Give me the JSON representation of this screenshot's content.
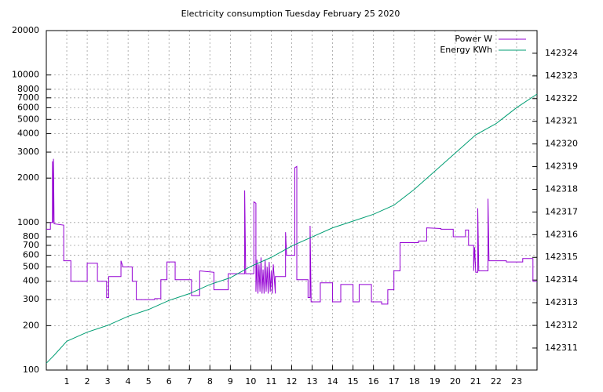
{
  "chart_data": {
    "type": "line",
    "title": "Electricity consumption Tuesday February 25 2020",
    "xlim": [
      0,
      24
    ],
    "xticks": [
      1,
      2,
      3,
      4,
      5,
      6,
      7,
      8,
      9,
      10,
      11,
      12,
      13,
      14,
      15,
      16,
      17,
      18,
      19,
      20,
      21,
      22,
      23
    ],
    "ylim": [
      100,
      20000
    ],
    "ylog": true,
    "yticks": [
      100,
      200,
      300,
      400,
      500,
      600,
      700,
      800,
      1000,
      2000,
      3000,
      4000,
      5000,
      6000,
      7000,
      8000,
      10000,
      20000
    ],
    "y2lim": [
      142310.03,
      142325
    ],
    "y2ticks": [
      142311,
      142312,
      142313,
      142314,
      142315,
      142316,
      142317,
      142318,
      142319,
      142320,
      142321,
      142322,
      142323,
      142324
    ],
    "grid": true,
    "legend": "top-right",
    "series": [
      {
        "name": "Power W",
        "color": "#9400d3",
        "x": [
          0,
          0.2,
          0.2,
          0.3,
          0.3,
          0.33,
          0.35,
          0.38,
          0.85,
          0.85,
          1.2,
          1.2,
          2.0,
          2.0,
          2.5,
          2.5,
          2.95,
          2.95,
          3.05,
          3.05,
          3.65,
          3.65,
          3.75,
          4.2,
          4.2,
          4.4,
          4.4,
          5.3,
          5.3,
          5.6,
          5.6,
          5.9,
          5.9,
          6.3,
          6.3,
          7.1,
          7.1,
          7.5,
          7.5,
          8.2,
          8.2,
          8.9,
          8.9,
          9.7,
          9.7,
          9.75,
          10.15,
          10.15,
          10.25,
          10.25,
          10.3,
          10.35,
          10.4,
          10.45,
          10.5,
          10.55,
          10.6,
          10.65,
          10.7,
          10.75,
          10.8,
          10.85,
          10.9,
          10.95,
          11.0,
          11.05,
          11.1,
          11.2,
          11.2,
          11.7,
          11.7,
          11.75,
          12.15,
          12.15,
          12.25,
          12.25,
          12.8,
          12.8,
          12.9,
          12.9,
          12.95,
          13.4,
          13.4,
          14.0,
          14.0,
          14.4,
          14.4,
          15.0,
          15.0,
          15.3,
          15.3,
          15.9,
          15.9,
          16.4,
          16.4,
          16.7,
          16.7,
          17.0,
          17.0,
          17.3,
          17.3,
          18.2,
          18.2,
          18.6,
          18.6,
          19.3,
          19.3,
          19.9,
          19.9,
          20.5,
          20.5,
          20.65,
          20.65,
          20.9,
          20.9,
          20.95,
          21.0,
          21.1,
          21.1,
          21.15,
          21.6,
          21.6,
          21.65,
          22.5,
          22.5,
          23.3,
          23.3,
          23.8,
          23.8,
          24
        ],
        "values": [
          900,
          900,
          1000,
          1000,
          2600,
          1000,
          2700,
          980,
          960,
          550,
          550,
          400,
          400,
          530,
          530,
          400,
          400,
          310,
          310,
          430,
          430,
          550,
          500,
          500,
          400,
          400,
          300,
          300,
          305,
          305,
          410,
          410,
          540,
          540,
          410,
          410,
          320,
          320,
          470,
          460,
          350,
          350,
          450,
          450,
          1650,
          450,
          450,
          1380,
          1350,
          340,
          560,
          330,
          520,
          340,
          580,
          330,
          480,
          330,
          560,
          340,
          500,
          330,
          540,
          340,
          470,
          330,
          520,
          330,
          430,
          430,
          860,
          600,
          600,
          2350,
          2400,
          410,
          410,
          310,
          310,
          950,
          290,
          290,
          390,
          390,
          290,
          290,
          380,
          380,
          290,
          290,
          380,
          380,
          290,
          290,
          280,
          280,
          350,
          350,
          470,
          470,
          730,
          730,
          750,
          750,
          920,
          910,
          900,
          900,
          800,
          800,
          890,
          890,
          700,
          700,
          470,
          680,
          460,
          460,
          1250,
          470,
          470,
          1450,
          550,
          550,
          540,
          540,
          570,
          570,
          400,
          400
        ]
      },
      {
        "name": "Energy KWh",
        "color": "#009e73",
        "axis": "y2",
        "x": [
          0,
          0.4,
          1,
          2,
          3,
          4,
          5,
          6,
          7,
          8,
          9,
          10,
          11,
          12,
          13,
          14,
          15,
          16,
          17,
          18,
          19,
          20,
          21,
          22,
          23,
          24
        ],
        "values": [
          142310.33,
          142310.7,
          142311.3,
          142311.7,
          142312.0,
          142312.4,
          142312.7,
          142313.1,
          142313.4,
          142313.8,
          142314.1,
          142314.6,
          142315.0,
          142315.5,
          142315.9,
          142316.3,
          142316.6,
          142316.9,
          142317.3,
          142318.0,
          142318.8,
          142319.6,
          142320.4,
          142320.9,
          142321.6,
          142322.2
        ]
      }
    ]
  }
}
